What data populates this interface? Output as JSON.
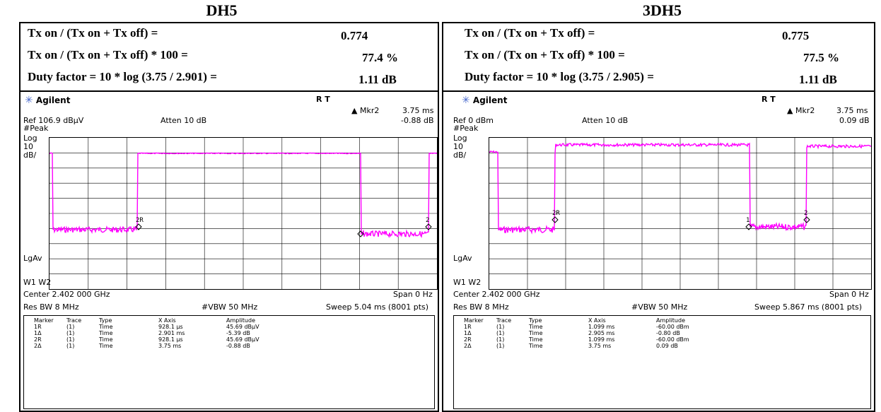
{
  "panels": [
    {
      "title": "DH5",
      "rows": [
        {
          "label": "Tx on / (Tx on + Tx off) =",
          "value": "0.774"
        },
        {
          "label": "Tx on / (Tx on + Tx off) * 100 =",
          "value": "77.4  %"
        },
        {
          "label": "Duty factor = 10 * log (3.75 / 2.901) =",
          "value": "1.11  dB"
        }
      ],
      "scope": {
        "brand": "Agilent",
        "rt": "R   T",
        "mkr_label": "▲ Mkr2",
        "mkr_x": "3.75 ms",
        "ref": "Ref 106.9 dBμV",
        "atten": "Atten 10 dB",
        "mkr_y": "-0.88 dB",
        "side_peak": "#Peak",
        "side_log": "Log",
        "side_10": "10",
        "side_db": "dB/",
        "side_lgav": "LgAv",
        "side_w": "W1  W2",
        "center": "Center 2.402 000 GHz",
        "span": "Span 0 Hz",
        "resbw": "Res BW 8 MHz",
        "vbw": "#VBW 50 MHz",
        "sweep": "Sweep 5.04 ms (8001 pts)",
        "marker_headers": [
          "Marker",
          "Trace",
          "Type",
          "X Axis",
          "Amplitude"
        ],
        "markers": [
          [
            "1R",
            "(1)",
            "Time",
            "928.1 μs",
            "45.69 dBμV"
          ],
          [
            "1Δ",
            "(1)",
            "Time",
            "2.901 ms",
            "-5.39 dB"
          ],
          [
            "2R",
            "(1)",
            "Time",
            "928.1 μs",
            "45.69 dBμV"
          ],
          [
            "2Δ",
            "(1)",
            "Time",
            "3.75 ms",
            "-0.88 dB"
          ]
        ],
        "trace_color": "#ff00ff",
        "marker_labels": [
          "2R",
          "1",
          "2"
        ]
      }
    },
    {
      "title": "3DH5",
      "rows": [
        {
          "label": "Tx on / (Tx on + Tx off) =",
          "value": "0.775"
        },
        {
          "label": "Tx on / (Tx on + Tx off) * 100 =",
          "value": "77.5  %"
        },
        {
          "label": "Duty factor = 10 * log (3.75 / 2.905) =",
          "value": "1.11  dB"
        }
      ],
      "scope": {
        "brand": "Agilent",
        "rt": "R   T",
        "mkr_label": "▲ Mkr2",
        "mkr_x": "3.75 ms",
        "ref": "Ref 0 dBm",
        "atten": "Atten 10 dB",
        "mkr_y": "0.09 dB",
        "side_peak": "#Peak",
        "side_log": "Log",
        "side_10": "10",
        "side_db": "dB/",
        "side_lgav": "LgAv",
        "side_w": "W1  W2",
        "center": "Center 2.402 000 GHz",
        "span": "Span 0 Hz",
        "resbw": "Res BW 8 MHz",
        "vbw": "#VBW 50 MHz",
        "sweep": "Sweep 5.867 ms (8001 pts)",
        "marker_headers": [
          "Marker",
          "Trace",
          "Type",
          "X Axis",
          "Amplitude"
        ],
        "markers": [
          [
            "1R",
            "(1)",
            "Time",
            "1.099 ms",
            "-60.00 dBm"
          ],
          [
            "1Δ",
            "(1)",
            "Time",
            "2.905 ms",
            "-0.80 dB"
          ],
          [
            "2R",
            "(1)",
            "Time",
            "1.099 ms",
            "-60.00 dBm"
          ],
          [
            "2Δ",
            "(1)",
            "Time",
            "3.75 ms",
            "0.09 dB"
          ]
        ],
        "trace_color": "#ff00ff",
        "marker_labels": [
          "2R",
          "1",
          "2"
        ]
      }
    }
  ]
}
